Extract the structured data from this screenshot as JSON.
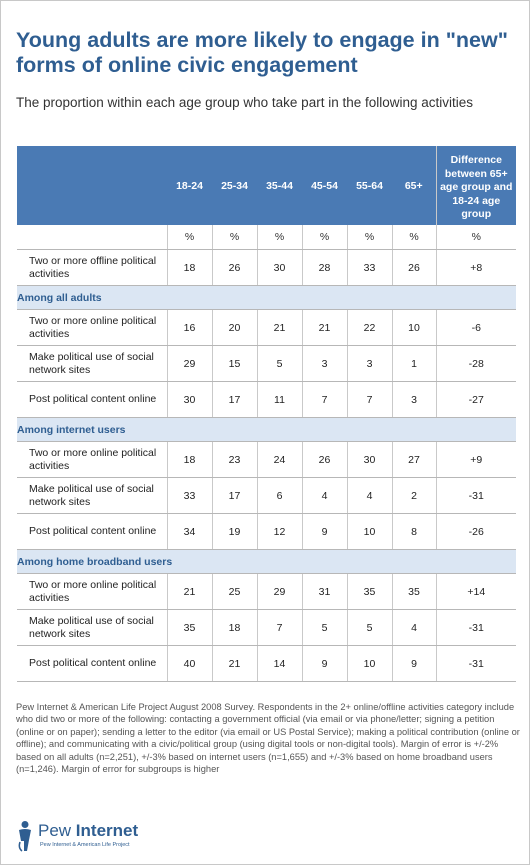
{
  "title": "Young adults are more likely to engage in \"new\" forms of online civic engagement",
  "subtitle": "The proportion within each age group who take part in the following activities",
  "chart_data": {
    "type": "table",
    "columns": [
      "18-24",
      "25-34",
      "35-44",
      "45-54",
      "55-64",
      "65+",
      "Difference between 65+ age group and 18-24 age group"
    ],
    "unit_row": [
      "%",
      "%",
      "%",
      "%",
      "%",
      "%",
      "%"
    ],
    "sections": [
      {
        "label": "",
        "rows": [
          {
            "label": "Two or more offline political activities",
            "values": [
              "18",
              "26",
              "30",
              "28",
              "33",
              "26",
              "+8"
            ]
          }
        ]
      },
      {
        "label": "Among all adults",
        "rows": [
          {
            "label": "Two or more online political activities",
            "values": [
              "16",
              "20",
              "21",
              "21",
              "22",
              "10",
              "-6"
            ]
          },
          {
            "label": "Make political use of social network sites",
            "values": [
              "29",
              "15",
              "5",
              "3",
              "3",
              "1",
              "-28"
            ]
          },
          {
            "label": "Post political content online",
            "values": [
              "30",
              "17",
              "11",
              "7",
              "7",
              "3",
              "-27"
            ]
          }
        ]
      },
      {
        "label": "Among internet users",
        "rows": [
          {
            "label": "Two or more online political activities",
            "values": [
              "18",
              "23",
              "24",
              "26",
              "30",
              "27",
              "+9"
            ]
          },
          {
            "label": "Make political use of social network sites",
            "values": [
              "33",
              "17",
              "6",
              "4",
              "4",
              "2",
              "-31"
            ]
          },
          {
            "label": "Post political content online",
            "values": [
              "34",
              "19",
              "12",
              "9",
              "10",
              "8",
              "-26"
            ]
          }
        ]
      },
      {
        "label": "Among home broadband users",
        "rows": [
          {
            "label": "Two or more online political activities",
            "values": [
              "21",
              "25",
              "29",
              "31",
              "35",
              "35",
              "+14"
            ]
          },
          {
            "label": "Make political use of social network sites",
            "values": [
              "35",
              "18",
              "7",
              "5",
              "5",
              "4",
              "-31"
            ]
          },
          {
            "label": "Post political content online",
            "values": [
              "40",
              "21",
              "14",
              "9",
              "10",
              "9",
              "-31"
            ]
          }
        ]
      }
    ]
  },
  "note": "Pew Internet & American Life Project August 2008 Survey. Respondents in the 2+ online/offline activities category include who did two or more of the following: contacting a government official (via email or via phone/letter; signing a petition (online or on paper); sending a letter to the editor (via email or US Postal Service); making a political contribution (online or offline); and communicating with a civic/political group (using digital tools or non-digital tools). Margin of error is +/-2% based on all adults (n=2,251), +/-3% based on internet users (n=1,655) and +/-3% based on home broadband users (n=1,246). Margin of error for subgroups is higher",
  "logo": {
    "word_light": "Pew ",
    "word_bold": "Internet",
    "tagline": "Pew Internet & American Life Project",
    "icon": "pew-figure-icon",
    "color": "#2f5e91"
  },
  "colors": {
    "header_bg": "#4a7ab4",
    "section_bg": "#dbe6f3",
    "title": "#2f5e91"
  }
}
